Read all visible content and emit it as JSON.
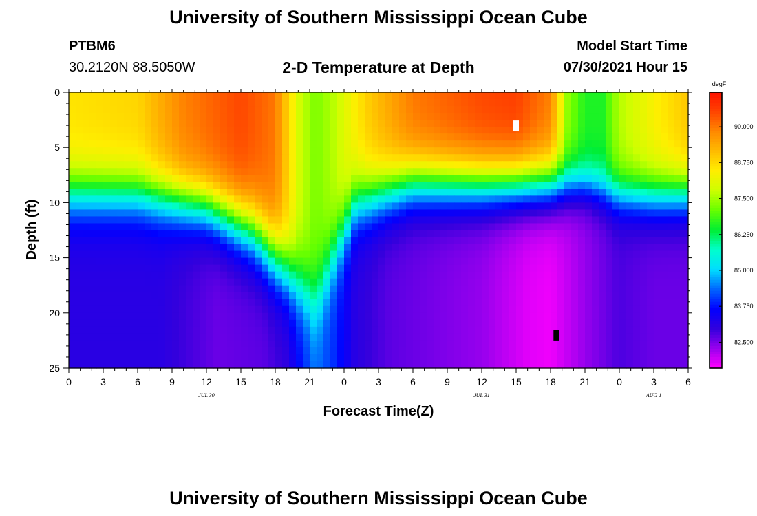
{
  "page": {
    "title": "University of Southern Mississippi Ocean Cube",
    "station_id": "PTBM6",
    "coords": "30.2120N  88.5050W",
    "plot_title": "2-D Temperature at Depth",
    "model_start_label": "Model Start Time",
    "model_start_value": "07/30/2021 Hour 15",
    "footer_title": "University of Southern Mississippi Ocean Cube"
  },
  "chart_data": {
    "type": "heatmap",
    "title": "2-D Temperature at Depth",
    "xlabel": "Forecast Time(Z)",
    "ylabel": "Depth (ft)",
    "units": "degF",
    "x_ticks": [
      "0",
      "3",
      "6",
      "9",
      "12",
      "15",
      "18",
      "21",
      "0",
      "3",
      "6",
      "9",
      "12",
      "15",
      "18",
      "21",
      "0",
      "3",
      "6"
    ],
    "x_range_hours": [
      0,
      54
    ],
    "date_labels": [
      {
        "text": "JUL 30",
        "hour": 12
      },
      {
        "text": "JUL 31",
        "hour": 36
      },
      {
        "text": "AUG 1",
        "hour": 51
      }
    ],
    "y_ticks": [
      "0",
      "5",
      "10",
      "15",
      "20",
      "25"
    ],
    "y_range_ft": [
      0,
      25
    ],
    "y_inverted": true,
    "colorbar_ticks": [
      "90.000",
      "88.750",
      "87.500",
      "86.250",
      "85.000",
      "83.750",
      "82.500"
    ],
    "colorbar_range": [
      81.6,
      91.2
    ],
    "colormap": [
      "#ff00ff",
      "#9900ee",
      "#3300dd",
      "#0000ff",
      "#0066ff",
      "#00ddff",
      "#00ffcc",
      "#00ee33",
      "#66ff00",
      "#ccff00",
      "#ffee00",
      "#ffbb00",
      "#ff8800",
      "#ff4400",
      "#ff1100"
    ],
    "markers": [
      {
        "label": "max",
        "hour": 39,
        "depth_ft": 3,
        "color": "#ffffff"
      },
      {
        "label": "min",
        "hour": 42.5,
        "depth_ft": 22,
        "color": "#000000"
      }
    ],
    "field_model": {
      "surface": [
        [
          0,
          88.6
        ],
        [
          6,
          88.8
        ],
        [
          10,
          89.9
        ],
        [
          15,
          90.5
        ],
        [
          18,
          90.0
        ],
        [
          20,
          87.9
        ],
        [
          21.5,
          87.2
        ],
        [
          23,
          87.6
        ],
        [
          26,
          88.9
        ],
        [
          30,
          90.0
        ],
        [
          36,
          90.5
        ],
        [
          39,
          90.6
        ],
        [
          42,
          89.9
        ],
        [
          43.5,
          87.4
        ],
        [
          45,
          86.6
        ],
        [
          46.5,
          86.6
        ],
        [
          48,
          87.6
        ],
        [
          51,
          88.4
        ],
        [
          54,
          89.0
        ]
      ],
      "deep": [
        [
          0,
          83.1
        ],
        [
          8,
          83.1
        ],
        [
          13,
          82.6
        ],
        [
          17,
          82.7
        ],
        [
          19,
          83.0
        ],
        [
          20,
          83.6
        ],
        [
          21.5,
          84.4
        ],
        [
          23,
          84.0
        ],
        [
          25,
          83.1
        ],
        [
          28,
          82.7
        ],
        [
          36,
          82.3
        ],
        [
          40,
          81.8
        ],
        [
          42,
          81.7
        ],
        [
          45,
          82.3
        ],
        [
          48,
          82.8
        ],
        [
          51,
          82.6
        ],
        [
          54,
          82.6
        ]
      ],
      "thermocline_ft": [
        [
          0,
          9.2
        ],
        [
          6,
          9.2
        ],
        [
          12,
          10.3
        ],
        [
          16,
          12.6
        ],
        [
          18,
          14.9
        ],
        [
          20,
          17.3
        ],
        [
          21.5,
          19.0
        ],
        [
          23,
          15.0
        ],
        [
          25,
          10.0
        ],
        [
          30,
          8.2
        ],
        [
          36,
          8.3
        ],
        [
          42,
          8.3
        ],
        [
          45,
          8.4
        ],
        [
          48,
          9.3
        ],
        [
          51,
          9.4
        ],
        [
          54,
          9.2
        ]
      ],
      "thickness_ft": [
        [
          0,
          7
        ],
        [
          12,
          7
        ],
        [
          16,
          8
        ],
        [
          20,
          8.5
        ],
        [
          21.5,
          9
        ],
        [
          23,
          8
        ],
        [
          25,
          7.5
        ],
        [
          30,
          7
        ],
        [
          42,
          7
        ],
        [
          45,
          5.5
        ],
        [
          48,
          5.8
        ],
        [
          51,
          6.5
        ],
        [
          54,
          6.5
        ]
      ]
    }
  }
}
